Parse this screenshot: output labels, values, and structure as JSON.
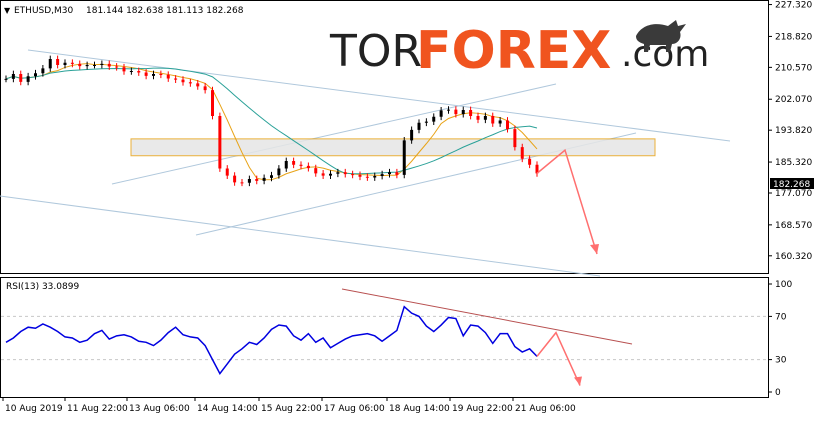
{
  "header": {
    "symbol_tf": "ETHUSD,M30",
    "ohlc": "181.144 182.638 181.113 182.268"
  },
  "logo": {
    "part1": "TOR",
    "part2": "FOREX",
    "part3": ".com"
  },
  "rsi": {
    "label": "RSI(13) 33.0899",
    "ticks": [
      "100",
      "70",
      "30",
      "0"
    ]
  },
  "current_price_label": "182.268",
  "colors": {
    "bull": "#000000",
    "bear": "#ff0000",
    "ma_fast": "#e8a317",
    "ma_slow": "#2aa198",
    "channel": "#b0c8dc",
    "zone_fill": "#e6e6e6",
    "zone_border": "#e8a317",
    "arrow": "#ff6f6f",
    "rsi_line": "#0000e0",
    "rsi_trend": "#b85050"
  },
  "chart_data": [
    {
      "type": "line",
      "title": "ETHUSD,M30",
      "ylim": [
        156,
        228
      ],
      "y_ticks": [
        227.32,
        218.82,
        210.57,
        202.07,
        193.82,
        185.32,
        177.07,
        168.57,
        160.32
      ],
      "x_tick_labels": [
        "10 Aug 2019",
        "11 Aug 22:00",
        "13 Aug 06:00",
        "14 Aug 14:00",
        "15 Aug 22:00",
        "17 Aug 06:00",
        "18 Aug 14:00",
        "19 Aug 22:00",
        "21 Aug 06:00"
      ],
      "series": [
        {
          "values": [
            207.5,
            208.8,
            206.7,
            208.2,
            209.0,
            210.3,
            212.8,
            211.2,
            211.8,
            211.5,
            210.9,
            211.2,
            211.2,
            211.5,
            210.8,
            210.6,
            209.5,
            209.6,
            209.2,
            208.3,
            208.8,
            208.6,
            207.6,
            207.3,
            206.6,
            206.3,
            205.5,
            204.5,
            197.6,
            183.6,
            181.7,
            179.9,
            179.8,
            180.8,
            180.3,
            181.1,
            181.8,
            183.6,
            185.6,
            184.6,
            184.3,
            183.7,
            182.3,
            181.7,
            182.2,
            182.6,
            182.1,
            181.9,
            181.4,
            181.2,
            181.6,
            182.1,
            182.6,
            181.9,
            191.1,
            193.9,
            195.8,
            196.1,
            197.4,
            199.1,
            199.3,
            198.1,
            199.2,
            197.6,
            196.6,
            197.6,
            195.6,
            196.4,
            194.1,
            189.3,
            186.2,
            184.6,
            182.3
          ]
        }
      ],
      "annotations": {
        "resistance_zone": [
          187.0,
          191.5
        ],
        "projected_path": [
          182.3,
          188.5,
          160.8
        ]
      }
    },
    {
      "type": "line",
      "title": "RSI(13) 33.0899",
      "ylim": [
        0,
        100
      ],
      "y_ticks": [
        100,
        70,
        30,
        0
      ],
      "series": [
        {
          "values": [
            46,
            50,
            56,
            60,
            59,
            63,
            60,
            56,
            51,
            50,
            46,
            48,
            54,
            57,
            49,
            52,
            53,
            51,
            47,
            46,
            43,
            48,
            55,
            60,
            53,
            51,
            50,
            43,
            30,
            17,
            26,
            35,
            40,
            46,
            44,
            50,
            58,
            62,
            61,
            52,
            48,
            54,
            46,
            50,
            41,
            45,
            49,
            52,
            53,
            54,
            52,
            47,
            52,
            57,
            79,
            73,
            70,
            61,
            56,
            62,
            69,
            68,
            52,
            62,
            61,
            55,
            45,
            54,
            54,
            42,
            37,
            40,
            33
          ]
        }
      ],
      "annotations": {
        "projected_path": [
          33,
          55,
          6
        ]
      }
    }
  ]
}
